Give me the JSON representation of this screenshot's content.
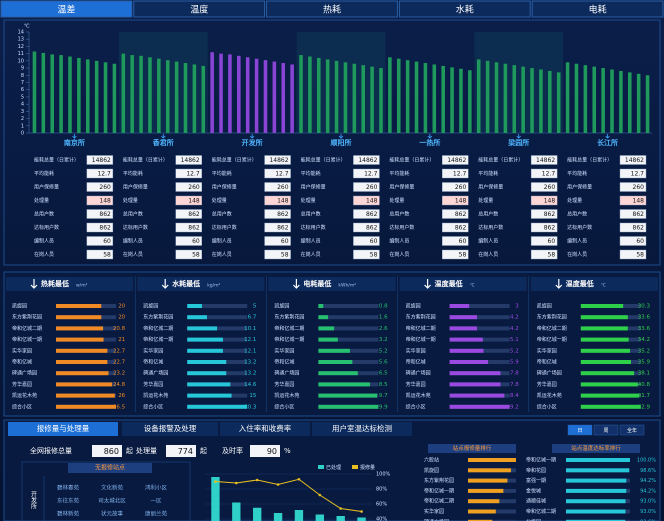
{
  "tabs": [
    "温差",
    "温度",
    "热耗",
    "水耗",
    "电耗"
  ],
  "chart_data": [
    {
      "type": "bar",
      "y_unit": "℃",
      "ylim": [
        0,
        14
      ],
      "yticks": [
        0,
        1,
        2,
        3,
        4,
        5,
        6,
        7,
        8,
        9,
        10,
        11,
        12,
        13,
        14
      ],
      "series": [
        {
          "name": "南京所",
          "color": "#1f9a5c",
          "values": [
            11.3,
            11.1,
            10.9,
            10.8,
            10.6,
            10.4,
            10.2,
            10.0,
            9.8,
            9.6
          ]
        },
        {
          "name": "香君所",
          "color": "#1f9a5c",
          "values": [
            11.0,
            10.8,
            10.7,
            10.5,
            10.3,
            10.1,
            9.9,
            9.7,
            9.5,
            9.3
          ]
        },
        {
          "name": "开发所",
          "color": "#8a44d6",
          "values": [
            11.2,
            11.0,
            10.9,
            10.7,
            10.5,
            10.3,
            10.1,
            9.9,
            9.7,
            9.5
          ]
        },
        {
          "name": "顺阳所",
          "color": "#1f9a5c",
          "values": [
            10.8,
            10.6,
            10.4,
            10.2,
            10.0,
            9.8,
            9.6,
            9.4,
            9.2,
            9.0
          ]
        },
        {
          "name": "一热所",
          "color": "#1f9a5c",
          "values": [
            10.5,
            10.3,
            10.1,
            9.9,
            9.7,
            9.5,
            9.3,
            9.1,
            8.9,
            8.7
          ]
        },
        {
          "name": "梁园所",
          "color": "#1f9a5c",
          "values": [
            10.2,
            10.0,
            9.8,
            9.6,
            9.4,
            9.2,
            9.0,
            8.8,
            8.6,
            8.4
          ]
        },
        {
          "name": "长江所",
          "color": "#1f9a5c",
          "values": [
            9.8,
            9.6,
            9.4,
            9.2,
            9.0,
            8.8,
            8.6,
            8.4,
            8.2,
            8.0
          ]
        }
      ]
    },
    {
      "type": "bar_line",
      "ylim": [
        40,
        100
      ],
      "yticks": [
        {
          "value": 100,
          "label": "100%"
        },
        {
          "value": 80,
          "label": "80%"
        },
        {
          "value": 60,
          "label": "60%"
        },
        {
          "value": 40,
          "label": "40%"
        }
      ],
      "series": [
        {
          "name": "已处理",
          "color": "#2fd0c8",
          "kind": "bar",
          "values": [
            96,
            62,
            55,
            48,
            52,
            46,
            44,
            42
          ]
        },
        {
          "name": "报修量",
          "color": "#e8c020",
          "kind": "line",
          "values": [
            90,
            88,
            92,
            86,
            93,
            72,
            54,
            50
          ]
        }
      ]
    }
  ],
  "stations": {
    "row_labels": [
      "能耗总量（日累计）",
      "平均能耗",
      "用户保修量",
      "处理量",
      "总用户数",
      "达标用户数",
      "编制人员",
      "在岗人员"
    ],
    "values": [
      [
        14862,
        12.7,
        260,
        148,
        862,
        862,
        60,
        58
      ],
      [
        14862,
        12.7,
        260,
        148,
        862,
        862,
        60,
        58
      ],
      [
        14862,
        12.7,
        260,
        148,
        862,
        862,
        60,
        58
      ],
      [
        14862,
        12.7,
        260,
        148,
        862,
        862,
        60,
        58
      ],
      [
        14862,
        12.7,
        260,
        148,
        862,
        862,
        60,
        58
      ],
      [
        14862,
        12.7,
        260,
        148,
        862,
        862,
        60,
        58
      ],
      [
        14862,
        12.7,
        260,
        148,
        862,
        862,
        60,
        58
      ]
    ]
  },
  "rankings": [
    {
      "title": "热耗最低",
      "unit": "w/m²",
      "color": "#f08a24",
      "names": [
        "凯旋园",
        "东方紫荆花园",
        "帝和亿城二期",
        "帝和亿城一期",
        "实华家园",
        "帝和亿城",
        "碑通广场园",
        "芳华嘉园",
        "凯运花木苑",
        "综合小区"
      ],
      "values": [
        20,
        20,
        20.8,
        21,
        22.7,
        22.7,
        23.2,
        24.8,
        26,
        26.5
      ]
    },
    {
      "title": "水耗最低",
      "unit": "kg/m²",
      "color": "#25c7d8",
      "names": [
        "凯旋园",
        "东方紫荆花园",
        "帝和亿城二期",
        "帝和亿城一期",
        "实华家园",
        "帝和亿城",
        "碑通广场园",
        "芳华嘉园",
        "凯运花木苑",
        "综合小区"
      ],
      "values": [
        5,
        6.7,
        10.1,
        12.1,
        12.1,
        13.2,
        13.2,
        14.6,
        15,
        20.3
      ]
    },
    {
      "title": "电耗最低",
      "unit": "kWh/m²",
      "color": "#26c070",
      "names": [
        "凯旋园",
        "东方紫荆花园",
        "帝和亿城二期",
        "帝和亿城一期",
        "实华家园",
        "帝和亿城",
        "碑通广场园",
        "芳华嘉园",
        "凯运花木苑",
        "综合小区"
      ],
      "values": [
        0.8,
        1.6,
        2.6,
        3.2,
        5.2,
        5.6,
        6.5,
        8.5,
        9.7,
        9.9
      ]
    },
    {
      "title": "温度最低",
      "unit": "℃",
      "color": "#9a4ae0",
      "names": [
        "凯旋园",
        "东方紫荆花园",
        "帝和亿城二期",
        "帝和亿城一期",
        "实华家园",
        "帝和亿城",
        "碑通广场园",
        "芳华嘉园",
        "凯运花木苑",
        "综合小区"
      ],
      "values": [
        3,
        4.2,
        4.2,
        5.1,
        5.2,
        5.9,
        7.8,
        7.8,
        8.4,
        9.2
      ]
    },
    {
      "title": "温度最低",
      "unit": "℃",
      "color": "#2ed04a",
      "names": [
        "凯旋园",
        "东方紫荆花园",
        "帝和亿城二期",
        "帝和亿城一期",
        "实华家园",
        "帝和亿城",
        "碑通广场园",
        "芳华嘉园",
        "凯运花木苑",
        "综合小区"
      ],
      "values": [
        30.3,
        33.6,
        33.6,
        34.2,
        35.2,
        35.9,
        38.1,
        40.8,
        41.7,
        42.9
      ]
    }
  ],
  "bottom": {
    "tabs": [
      "报修量与处理量",
      "设备报警及处理",
      "入住率和收费率",
      "用户室温达标检测"
    ],
    "periods": [
      "日",
      "周",
      "全年"
    ],
    "summary": [
      {
        "label": "全网报修总量",
        "value": 860,
        "unit": "起"
      },
      {
        "label": "处理量",
        "value": 774,
        "unit": "起"
      },
      {
        "label": "及时率",
        "value": 90,
        "unit": "%"
      }
    ],
    "no_repair": {
      "title": "无报修站点",
      "station": "开发所",
      "sites": [
        [
          "碧林春苑",
          "文化新苑",
          "鸿利小区"
        ],
        [
          "东往东苑",
          "司太城北区",
          "一区"
        ],
        [
          "碧林新苑",
          "状元故事",
          "康丽兰苑"
        ]
      ]
    },
    "repair_rank": {
      "title": "站点报修量排行",
      "color": "#f0a020",
      "names": [
        "六股站",
        "凯旋园",
        "东方紫荆花园",
        "帝和亿城一期",
        "帝和亿城二期",
        "实华家园",
        "碑通广场园"
      ],
      "values": [
        95,
        85,
        78,
        70,
        62,
        55,
        48
      ]
    },
    "temp_rank": {
      "title": "站点温度达标率排行",
      "color": "#25c7d8",
      "names": [
        "帝和亿城一期",
        "帝和花园",
        "富强一期",
        "金悦城",
        "通顺佳城",
        "帝和亿城二期",
        "北枫园"
      ],
      "values": [
        100.0,
        98.6,
        94.2,
        94.2,
        93.0,
        93.0,
        92.6
      ],
      "value_labels": [
        "100.0%",
        "98.6%",
        "94.2%",
        "94.2%",
        "93.0%",
        "93.0%",
        "92.6%"
      ]
    }
  }
}
